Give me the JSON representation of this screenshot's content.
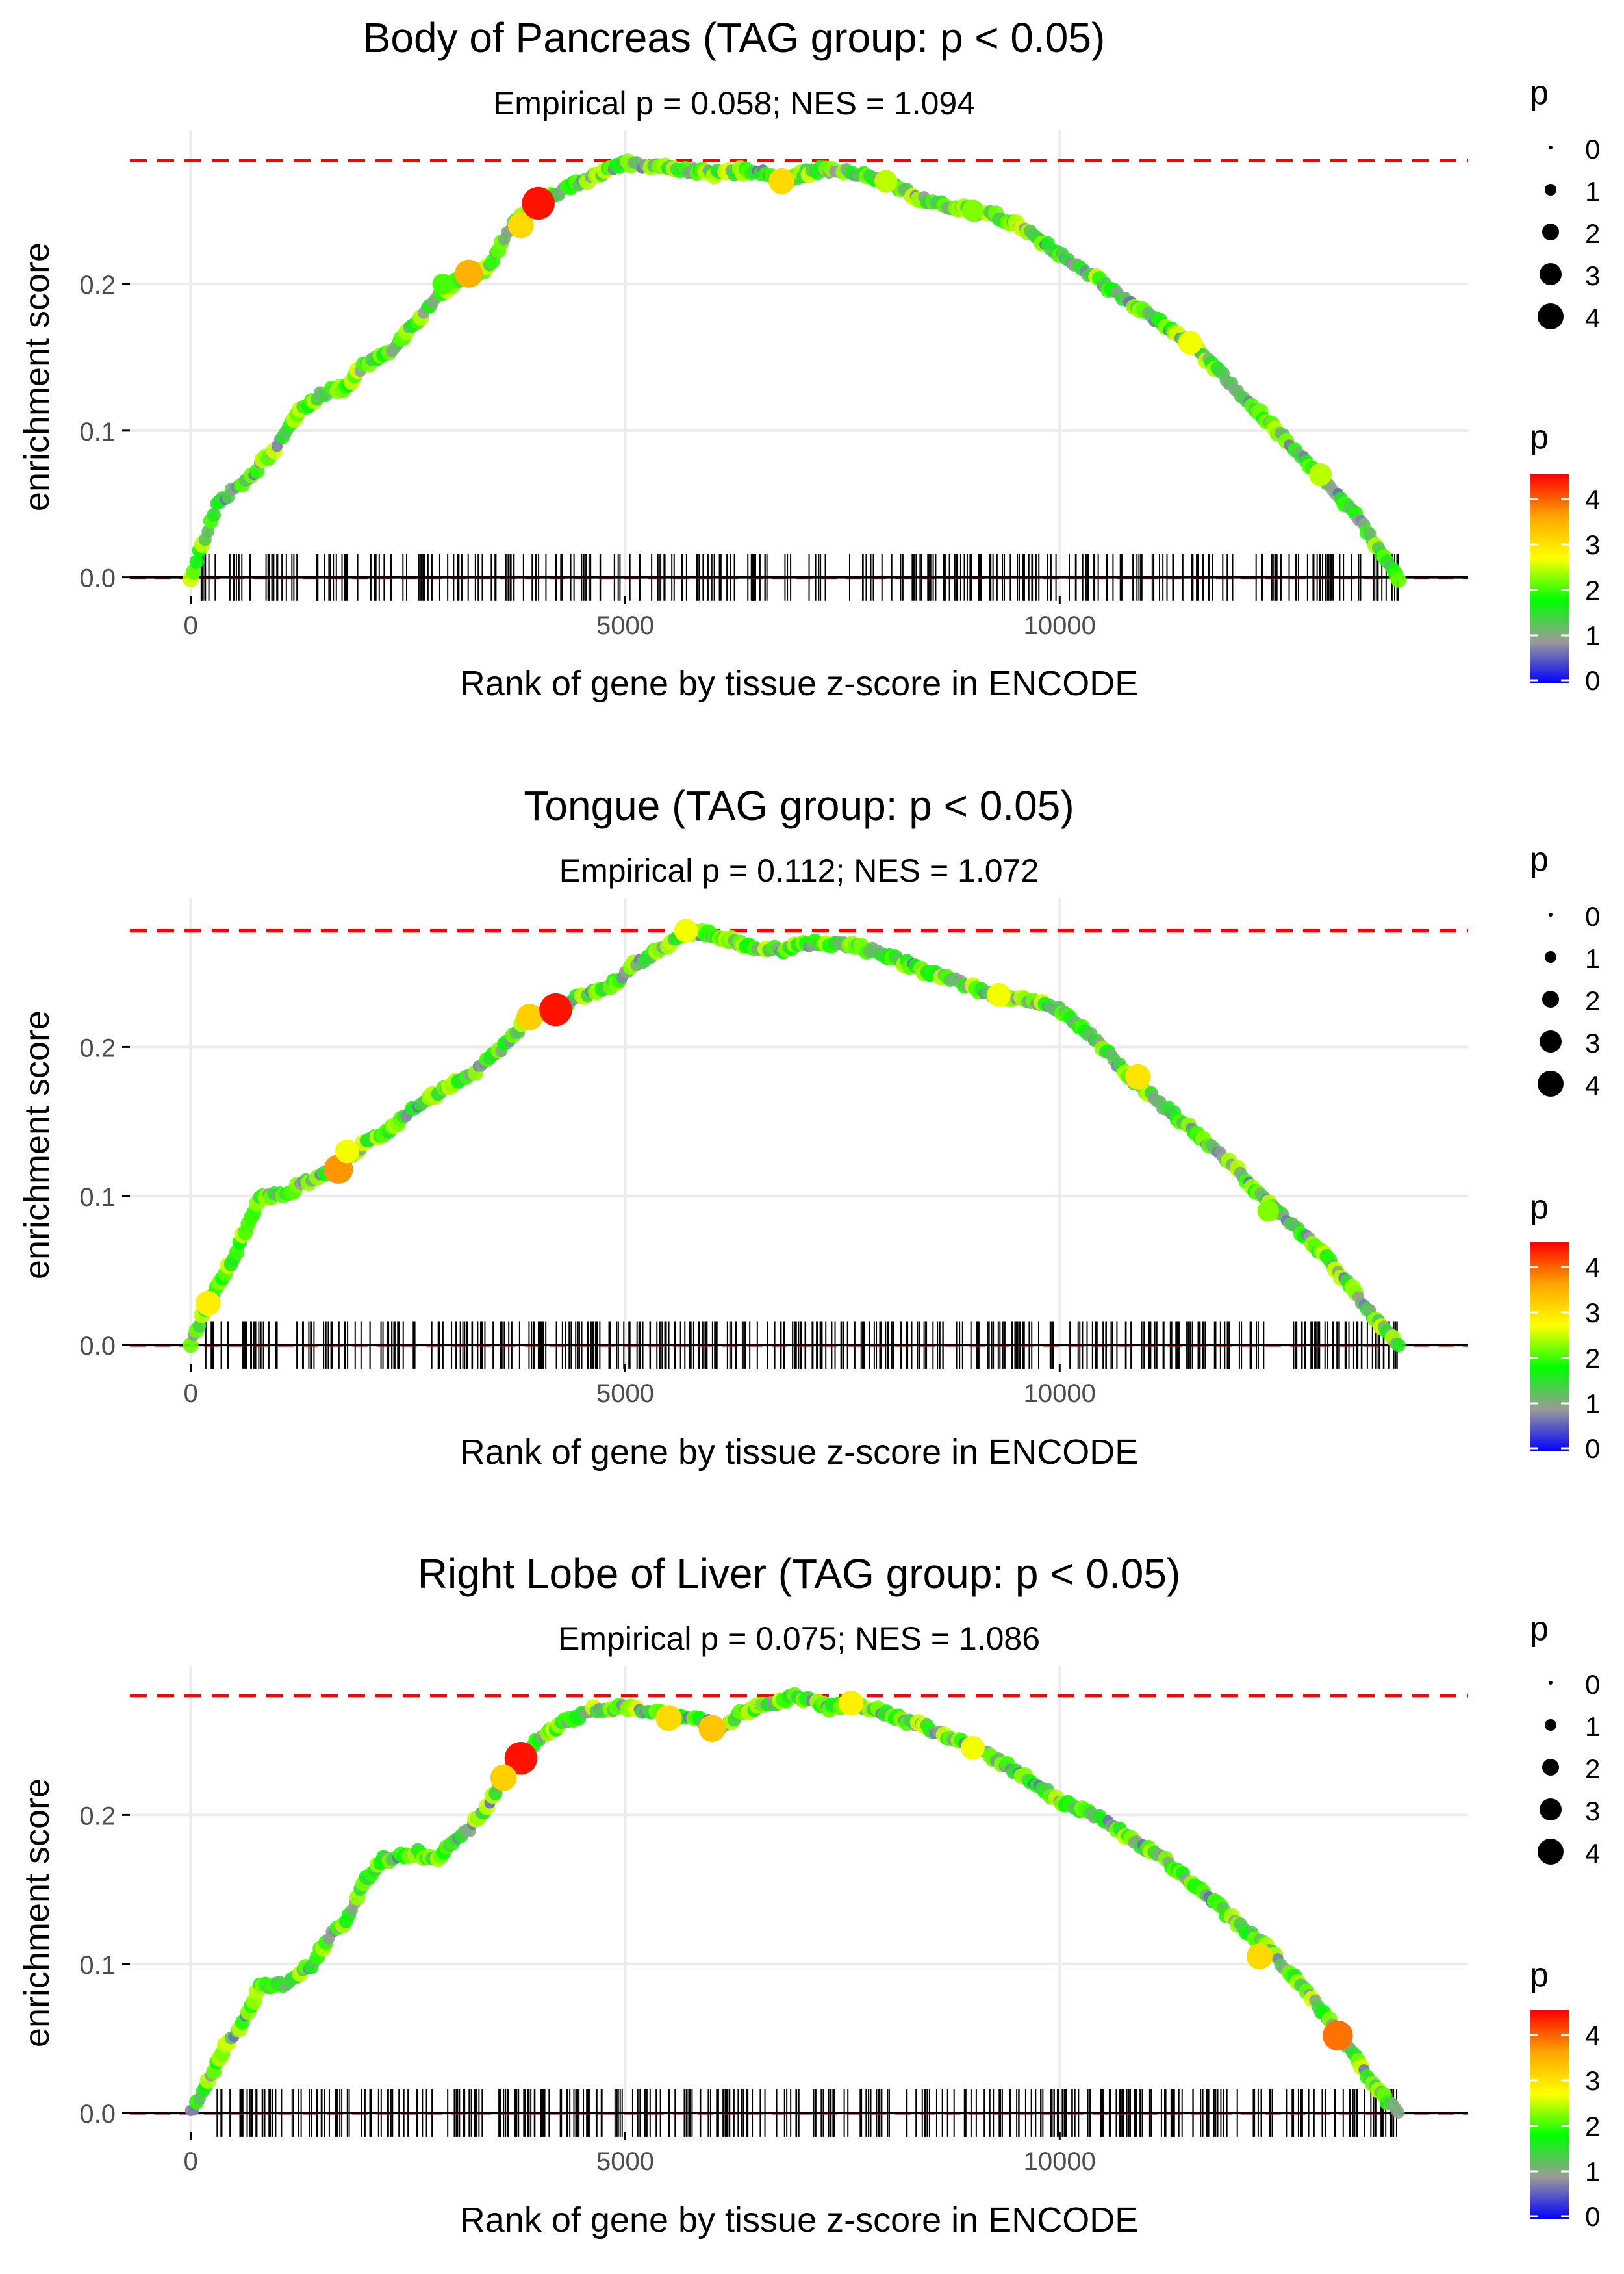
{
  "figure": {
    "name": "GSEA enrichment plots"
  },
  "colors": {
    "background": "#ffffff",
    "grid": "#ebebeb",
    "max_line": "#ff0000",
    "zero_line": "#000000",
    "ticks": "#000000",
    "text": "#000000",
    "axis_text": "#4d4d4d",
    "gradient": [
      "#0000ff",
      "#9a9a9a",
      "#00ff00",
      "#ffff00",
      "#ffa500",
      "#ff0000"
    ]
  },
  "chart_data": [
    {
      "type": "line",
      "title": "Body of Pancreas (TAG group: p < 0.05)",
      "subtitle": "Empirical p = 0.058; NES = 1.094",
      "xlabel": "Rank of gene by tissue z-score in ENCODE",
      "ylabel": "enrichment score",
      "xlim": [
        -700,
        14700
      ],
      "ylim": [
        -0.013,
        0.305
      ],
      "xticks": [
        0,
        5000,
        10000
      ],
      "xtick_labels": [
        "0",
        "5000",
        "10000"
      ],
      "yticks": [
        0.0,
        0.1,
        0.2
      ],
      "ytick_labels": [
        "0.0",
        "0.1",
        "0.2"
      ],
      "max_es": 0.284,
      "legend_size": {
        "title": "p",
        "labels": [
          "0",
          "1",
          "2",
          "3",
          "4"
        ]
      },
      "legend_color": {
        "title": "p",
        "labels": [
          "4",
          "3",
          "2",
          "1",
          "0"
        ],
        "range": [
          0,
          4.4
        ]
      },
      "series": [
        {
          "name": "running enrichment score",
          "x": [
            0,
            300,
            700,
            1000,
            1200,
            1500,
            1800,
            2000,
            2300,
            2600,
            2800,
            3000,
            3200,
            3400,
            3700,
            4000,
            4300,
            4600,
            5000,
            5200,
            5500,
            6000,
            6500,
            6800,
            7200,
            7600,
            8000,
            8400,
            8800,
            9200,
            9600,
            10000,
            10500,
            11000,
            11500,
            12000,
            12500,
            13000,
            13500,
            13900
          ],
          "y": [
            0.0,
            0.05,
            0.07,
            0.09,
            0.11,
            0.125,
            0.13,
            0.145,
            0.155,
            0.175,
            0.19,
            0.2,
            0.205,
            0.21,
            0.24,
            0.255,
            0.265,
            0.272,
            0.284,
            0.28,
            0.28,
            0.275,
            0.278,
            0.27,
            0.278,
            0.276,
            0.27,
            0.258,
            0.252,
            0.248,
            0.238,
            0.22,
            0.2,
            0.18,
            0.16,
            0.13,
            0.1,
            0.07,
            0.035,
            0.0
          ],
          "highlights": [
            {
              "x": 2900,
              "y": 0.2,
              "p": 2.0
            },
            {
              "x": 3200,
              "y": 0.207,
              "p": 3.4
            },
            {
              "x": 3800,
              "y": 0.24,
              "p": 3.0
            },
            {
              "x": 4000,
              "y": 0.255,
              "p": 4.3
            },
            {
              "x": 6800,
              "y": 0.27,
              "p": 3.0
            },
            {
              "x": 8000,
              "y": 0.27,
              "p": 2.4
            },
            {
              "x": 9000,
              "y": 0.25,
              "p": 2.2
            },
            {
              "x": 11500,
              "y": 0.16,
              "p": 2.6
            },
            {
              "x": 13000,
              "y": 0.07,
              "p": 2.4
            }
          ]
        }
      ],
      "rug_count": 300
    },
    {
      "type": "line",
      "title": "Tongue (TAG group: p < 0.05)",
      "subtitle": "Empirical p = 0.112; NES = 1.072",
      "xlabel": "Rank of gene by tissue z-score in ENCODE",
      "ylabel": "enrichment score",
      "xlim": [
        -700,
        14700
      ],
      "ylim": [
        -0.013,
        0.3
      ],
      "xticks": [
        0,
        5000,
        10000
      ],
      "xtick_labels": [
        "0",
        "5000",
        "10000"
      ],
      "yticks": [
        0.0,
        0.1,
        0.2
      ],
      "ytick_labels": [
        "0.0",
        "0.1",
        "0.2"
      ],
      "max_es": 0.278,
      "legend_size": {
        "title": "p",
        "labels": [
          "0",
          "1",
          "2",
          "3",
          "4"
        ]
      },
      "legend_color": {
        "title": "p",
        "labels": [
          "4",
          "3",
          "2",
          "1",
          "0"
        ],
        "range": [
          0,
          4.4
        ]
      },
      "series": [
        {
          "name": "running enrichment score",
          "x": [
            0,
            200,
            500,
            800,
            1000,
            1200,
            1500,
            1700,
            2000,
            2300,
            2600,
            3000,
            3300,
            3600,
            3900,
            4200,
            4500,
            4800,
            5100,
            5400,
            5700,
            6000,
            6400,
            6800,
            7200,
            7600,
            8000,
            8400,
            8800,
            9200,
            9600,
            10000,
            10400,
            10800,
            11200,
            11600,
            12000,
            12400,
            12800,
            13200,
            13600,
            13900
          ],
          "y": [
            0.0,
            0.03,
            0.06,
            0.1,
            0.1,
            0.105,
            0.115,
            0.12,
            0.135,
            0.145,
            0.16,
            0.175,
            0.185,
            0.2,
            0.22,
            0.225,
            0.235,
            0.24,
            0.255,
            0.265,
            0.278,
            0.275,
            0.268,
            0.265,
            0.27,
            0.268,
            0.262,
            0.252,
            0.245,
            0.235,
            0.232,
            0.225,
            0.205,
            0.18,
            0.16,
            0.14,
            0.12,
            0.095,
            0.075,
            0.05,
            0.02,
            0.0
          ],
          "highlights": [
            {
              "x": 200,
              "y": 0.028,
              "p": 2.8
            },
            {
              "x": 1700,
              "y": 0.118,
              "p": 3.6
            },
            {
              "x": 1800,
              "y": 0.13,
              "p": 2.6
            },
            {
              "x": 3900,
              "y": 0.22,
              "p": 3.1
            },
            {
              "x": 4200,
              "y": 0.225,
              "p": 4.3
            },
            {
              "x": 5700,
              "y": 0.278,
              "p": 2.6
            },
            {
              "x": 9300,
              "y": 0.235,
              "p": 2.6
            },
            {
              "x": 10900,
              "y": 0.18,
              "p": 2.9
            },
            {
              "x": 12400,
              "y": 0.09,
              "p": 2.2
            }
          ]
        }
      ],
      "rug_count": 380
    },
    {
      "type": "line",
      "title": "Right Lobe of Liver (TAG group: p < 0.05)",
      "subtitle": "Empirical p = 0.075; NES = 1.086",
      "xlabel": "Rank of gene by tissue z-score in ENCODE",
      "ylabel": "enrichment score",
      "xlim": [
        -700,
        14700
      ],
      "ylim": [
        -0.013,
        0.3
      ],
      "xticks": [
        0,
        5000,
        10000
      ],
      "xtick_labels": [
        "0",
        "5000",
        "10000"
      ],
      "yticks": [
        0.0,
        0.1,
        0.2
      ],
      "ytick_labels": [
        "0.0",
        "0.1",
        "0.2"
      ],
      "max_es": 0.28,
      "legend_size": {
        "title": "p",
        "labels": [
          "0",
          "1",
          "2",
          "3",
          "4"
        ]
      },
      "legend_color": {
        "title": "p",
        "labels": [
          "4",
          "3",
          "2",
          "1",
          "0"
        ],
        "range": [
          0,
          4.4
        ]
      },
      "series": [
        {
          "name": "running enrichment score",
          "x": [
            0,
            200,
            400,
            600,
            800,
            1000,
            1200,
            1400,
            1600,
            1800,
            2000,
            2200,
            2400,
            2600,
            2800,
            3000,
            3200,
            3400,
            3600,
            3800,
            4000,
            4300,
            4600,
            5000,
            5400,
            5800,
            6100,
            6400,
            6700,
            7000,
            7300,
            7600,
            8000,
            8400,
            8800,
            9200,
            9600,
            10000,
            10400,
            10800,
            11200,
            11600,
            12000,
            12400,
            12800,
            13200,
            13600,
            13900
          ],
          "y": [
            0.0,
            0.02,
            0.045,
            0.06,
            0.085,
            0.085,
            0.09,
            0.1,
            0.12,
            0.13,
            0.155,
            0.17,
            0.172,
            0.175,
            0.17,
            0.18,
            0.19,
            0.205,
            0.225,
            0.238,
            0.25,
            0.262,
            0.27,
            0.272,
            0.268,
            0.265,
            0.26,
            0.27,
            0.275,
            0.28,
            0.272,
            0.275,
            0.268,
            0.26,
            0.25,
            0.24,
            0.225,
            0.21,
            0.2,
            0.185,
            0.17,
            0.15,
            0.13,
            0.11,
            0.085,
            0.055,
            0.02,
            0.0
          ],
          "highlights": [
            {
              "x": 3800,
              "y": 0.238,
              "p": 4.3
            },
            {
              "x": 3600,
              "y": 0.225,
              "p": 3.1
            },
            {
              "x": 5500,
              "y": 0.265,
              "p": 3.0
            },
            {
              "x": 6000,
              "y": 0.258,
              "p": 3.2
            },
            {
              "x": 7600,
              "y": 0.275,
              "p": 2.8
            },
            {
              "x": 9000,
              "y": 0.245,
              "p": 2.6
            },
            {
              "x": 12300,
              "y": 0.105,
              "p": 3.0
            },
            {
              "x": 13200,
              "y": 0.052,
              "p": 3.8
            }
          ]
        }
      ],
      "rug_count": 340
    }
  ]
}
